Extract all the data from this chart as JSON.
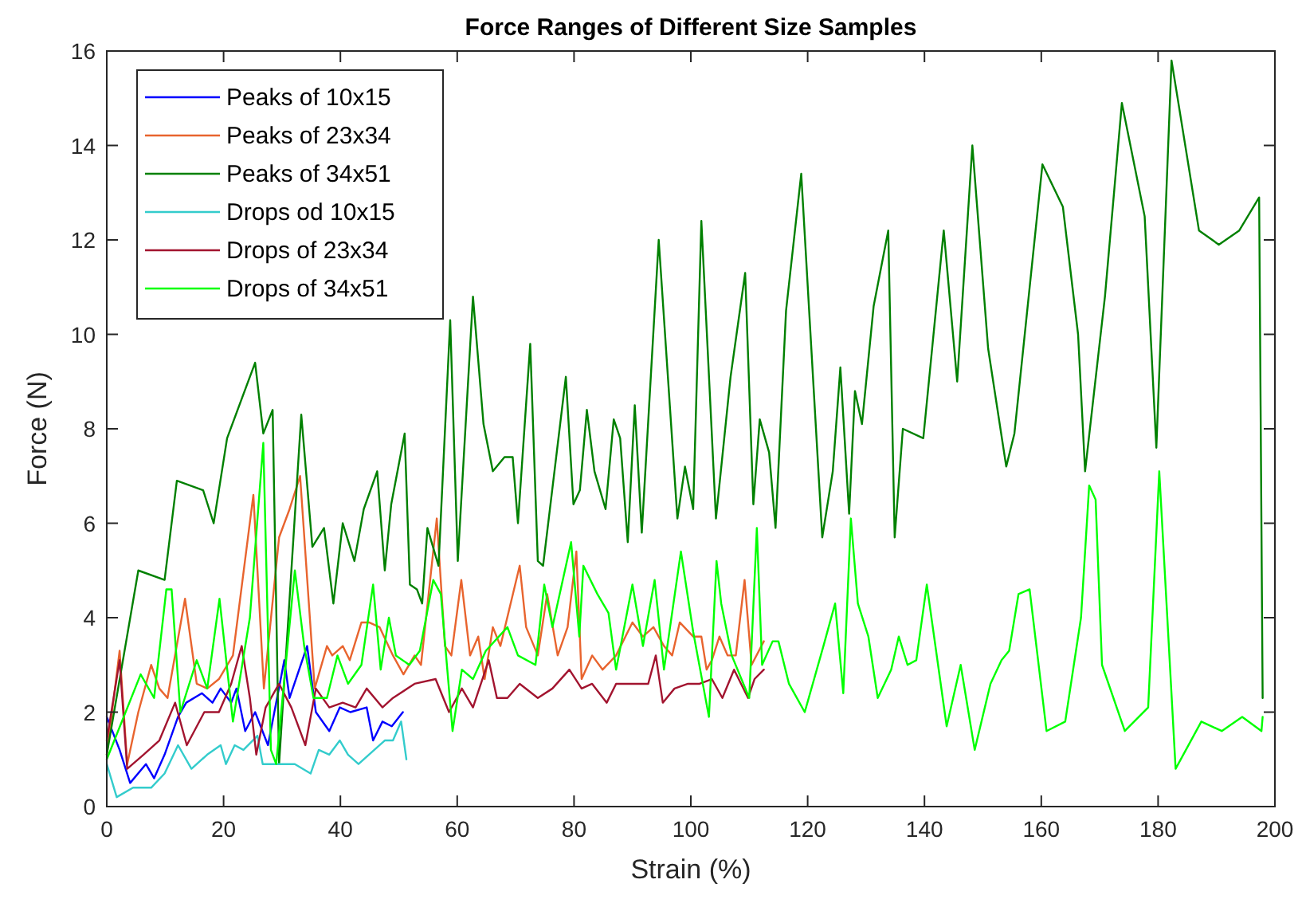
{
  "chart_data": {
    "type": "line",
    "title": "Force Ranges of Different Size Samples",
    "xlabel": "Strain (%)",
    "ylabel": "Force (N)",
    "xlim": [
      0,
      200
    ],
    "xticks": [
      0,
      20,
      40,
      60,
      80,
      100,
      120,
      140,
      160,
      180,
      200
    ],
    "ylim": [
      0,
      16
    ],
    "yticks": [
      0,
      2,
      4,
      6,
      8,
      10,
      12,
      14,
      16
    ],
    "grid": false,
    "legend": "top left",
    "marker": "none",
    "line_style": "solid",
    "series": [
      {
        "name": "Peaks of 10x15",
        "color": "#0000ff",
        "x": [
          0,
          2.2,
          4,
          6.7,
          8.1,
          9.9,
          12.2,
          13.6,
          16.3,
          18.1,
          19.5,
          21.3,
          22.2,
          23.7,
          25.4,
          27.6,
          29,
          30.4,
          31.3,
          34.3,
          35.8,
          38.1,
          39.9,
          41.7,
          44.5,
          45.6,
          47.2,
          48.8,
          50.7
        ],
        "values": [
          1.9,
          1.2,
          0.5,
          0.9,
          0.6,
          1.1,
          1.9,
          2.2,
          2.4,
          2.2,
          2.5,
          2.2,
          2.5,
          1.6,
          2.0,
          1.3,
          2.2,
          3.1,
          2.3,
          3.4,
          2.0,
          1.6,
          2.1,
          2.0,
          2.1,
          1.4,
          1.8,
          1.7,
          2.0
        ]
      },
      {
        "name": "Peaks of 23x34",
        "color": "#e8642e",
        "x": [
          0,
          2.2,
          3.5,
          5.4,
          7.6,
          9,
          10.4,
          13.4,
          15.4,
          17.2,
          19.2,
          21.6,
          25.1,
          26.9,
          29.5,
          31.3,
          33.1,
          35.6,
          37.7,
          38.6,
          40.4,
          41.6,
          43.6,
          44.9,
          46.7,
          49,
          50.8,
          52.7,
          53.8,
          56.5,
          57.9,
          59,
          60.7,
          62.2,
          63.6,
          64.7,
          66.1,
          67.4,
          70.7,
          71.8,
          73.8,
          75.4,
          77.2,
          78.9,
          80.4,
          81.3,
          83.1,
          84.9,
          87.2,
          90,
          91.8,
          93.6,
          95.4,
          96.8,
          98.1,
          100.4,
          101.8,
          102.7,
          103.6,
          104.9,
          106.3,
          107.7,
          109.2,
          110.4,
          112.5
        ],
        "values": [
          1.1,
          3.3,
          0.9,
          2.0,
          3.0,
          2.5,
          2.3,
          4.4,
          2.6,
          2.5,
          2.7,
          3.2,
          6.6,
          2.5,
          5.7,
          6.3,
          7.0,
          2.5,
          3.4,
          3.2,
          3.4,
          3.1,
          3.9,
          3.9,
          3.8,
          3.2,
          2.8,
          3.2,
          3.0,
          6.1,
          3.4,
          3.2,
          4.8,
          3.2,
          3.6,
          2.7,
          3.8,
          3.4,
          5.1,
          3.8,
          3.2,
          4.5,
          3.2,
          3.8,
          5.4,
          2.7,
          3.2,
          2.9,
          3.2,
          3.9,
          3.6,
          3.8,
          3.4,
          3.2,
          3.9,
          3.6,
          3.6,
          2.9,
          3.1,
          3.6,
          3.2,
          3.2,
          4.8,
          3.0,
          3.5
        ]
      },
      {
        "name": "Peaks of 34x51",
        "color": "#008000",
        "x": [
          0,
          5.4,
          9.9,
          12,
          16.5,
          18.3,
          20.6,
          25.4,
          26.8,
          28.4,
          29.5,
          33.3,
          35.2,
          37.2,
          38.8,
          40.4,
          42.4,
          44,
          46.3,
          47.6,
          48.7,
          51,
          51.9,
          53.1,
          54,
          54.9,
          56.8,
          58.8,
          60.1,
          62.7,
          64.5,
          66.1,
          68.1,
          69.5,
          70.4,
          72.5,
          73.8,
          74.7,
          78.6,
          79.9,
          81,
          82.2,
          83.5,
          85.4,
          86.8,
          87.9,
          89.2,
          90.4,
          91.6,
          94.5,
          97.7,
          99,
          100.4,
          101.8,
          104.3,
          106.8,
          109.3,
          110.7,
          111.8,
          113.4,
          114.5,
          116.3,
          118.9,
          122.5,
          124.3,
          125.6,
          127.1,
          128.1,
          129.3,
          131.3,
          133.8,
          134.9,
          136.3,
          139.8,
          143.3,
          145.6,
          148.2,
          150.9,
          154,
          155.4,
          160.2,
          163.7,
          166.3,
          167.5,
          170.9,
          173.8,
          177.7,
          179.7,
          182.3,
          187,
          190.4,
          193.9,
          197.3,
          197.9
        ],
        "values": [
          1.1,
          5.0,
          4.8,
          6.9,
          6.7,
          6.0,
          7.8,
          9.4,
          7.9,
          8.4,
          0.9,
          8.3,
          5.5,
          5.9,
          4.3,
          6.0,
          5.2,
          6.3,
          7.1,
          5.0,
          6.4,
          7.9,
          4.7,
          4.6,
          4.3,
          5.9,
          5.1,
          10.3,
          5.2,
          10.8,
          8.1,
          7.1,
          7.4,
          7.4,
          6.0,
          9.8,
          5.2,
          5.1,
          9.1,
          6.4,
          6.7,
          8.4,
          7.1,
          6.3,
          8.2,
          7.8,
          5.6,
          8.5,
          5.8,
          12.0,
          6.1,
          7.2,
          6.3,
          12.4,
          6.1,
          9.1,
          11.3,
          6.4,
          8.2,
          7.5,
          5.9,
          10.5,
          13.4,
          5.7,
          7.1,
          9.3,
          6.2,
          8.8,
          8.1,
          10.6,
          12.2,
          5.7,
          8.0,
          7.8,
          12.2,
          9.0,
          14.0,
          9.7,
          7.2,
          7.9,
          13.6,
          12.7,
          10.0,
          7.1,
          10.8,
          14.9,
          12.5,
          7.6,
          15.8,
          12.2,
          11.9,
          12.2,
          12.9,
          2.3
        ]
      },
      {
        "name": "Drops od 10x15",
        "color": "#33cccc",
        "x": [
          0,
          1.7,
          4.5,
          7.6,
          9.9,
          12.2,
          14.5,
          17.2,
          19.5,
          20.4,
          21.9,
          23.4,
          25.8,
          26.7,
          29.5,
          32.2,
          34.9,
          36.3,
          38.1,
          39.9,
          41.3,
          43.1,
          45.8,
          47.6,
          49,
          50.4,
          51.3
        ],
        "values": [
          0.9,
          0.2,
          0.4,
          0.4,
          0.7,
          1.3,
          0.8,
          1.1,
          1.3,
          0.9,
          1.3,
          1.2,
          1.5,
          0.9,
          0.9,
          0.9,
          0.7,
          1.2,
          1.1,
          1.4,
          1.1,
          0.9,
          1.2,
          1.4,
          1.4,
          1.8,
          1.0
        ]
      },
      {
        "name": "Drops of 23x34",
        "color": "#a2142f",
        "x": [
          0,
          2.2,
          3.5,
          6.3,
          9,
          11.7,
          13.7,
          16.7,
          19.2,
          21.3,
          23.1,
          24.5,
          25.6,
          27.2,
          29.5,
          31.6,
          34,
          35.8,
          38.1,
          40.4,
          42.6,
          44.5,
          47.2,
          49,
          52.7,
          56.3,
          58.6,
          60.8,
          62.7,
          65.4,
          66.8,
          68.6,
          70.7,
          73.8,
          76.3,
          79.2,
          81.3,
          83.1,
          85.6,
          87.2,
          92.7,
          94,
          95.2,
          97.2,
          99.5,
          101.5,
          103.6,
          105.4,
          107.4,
          109.8,
          110.9,
          112.5
        ],
        "values": [
          1.4,
          3.1,
          0.8,
          1.1,
          1.4,
          2.2,
          1.3,
          2.0,
          2.0,
          2.6,
          3.4,
          2.3,
          1.1,
          2.1,
          2.6,
          2.1,
          1.3,
          2.5,
          2.1,
          2.2,
          2.1,
          2.5,
          2.1,
          2.3,
          2.6,
          2.7,
          2.0,
          2.5,
          2.1,
          3.1,
          2.3,
          2.3,
          2.6,
          2.3,
          2.5,
          2.9,
          2.5,
          2.6,
          2.2,
          2.6,
          2.6,
          3.2,
          2.2,
          2.5,
          2.6,
          2.6,
          2.7,
          2.3,
          2.9,
          2.3,
          2.7,
          2.9
        ]
      },
      {
        "name": "Drops of 34x51",
        "color": "#00ff00",
        "x": [
          0,
          5.8,
          8.1,
          10.2,
          11.1,
          12.6,
          15.4,
          17.2,
          19.3,
          21.6,
          24.5,
          26.8,
          28.1,
          29,
          32.2,
          33.8,
          35.4,
          37.7,
          39.5,
          41.3,
          43.6,
          45.6,
          46.9,
          48.3,
          49.5,
          51.8,
          53.6,
          55.9,
          57.2,
          59.2,
          60.8,
          62.7,
          64.9,
          68.6,
          70.4,
          73.4,
          74.9,
          76.3,
          79.5,
          80.9,
          81.6,
          84,
          85.9,
          87.2,
          90,
          91.8,
          93.8,
          95.4,
          98.3,
          100.4,
          102.2,
          103.1,
          104.4,
          105.2,
          107,
          110,
          111.3,
          112.2,
          114,
          115,
          116.8,
          119.5,
          122.7,
          124.7,
          126.1,
          127.4,
          128.6,
          130.4,
          132,
          134.3,
          135.6,
          137.1,
          138.6,
          140.4,
          143.8,
          146.2,
          148.6,
          151.3,
          153.2,
          154.5,
          156.1,
          158,
          160.9,
          164.1,
          166.8,
          168.2,
          169.3,
          170.4,
          174.3,
          178.3,
          180.2,
          183,
          187.4,
          190.9,
          194.4,
          197.7,
          197.9
        ],
        "values": [
          1.0,
          2.8,
          2.3,
          4.6,
          4.6,
          2.0,
          3.1,
          2.5,
          4.4,
          1.8,
          4.0,
          7.7,
          1.2,
          0.9,
          5.0,
          3.4,
          2.3,
          2.3,
          3.2,
          2.6,
          3.0,
          4.7,
          2.9,
          4.0,
          3.2,
          3.0,
          3.3,
          4.8,
          4.5,
          1.6,
          2.9,
          2.7,
          3.3,
          3.8,
          3.2,
          3.0,
          4.7,
          3.8,
          5.6,
          3.6,
          5.1,
          4.5,
          4.1,
          2.9,
          4.7,
          3.4,
          4.8,
          2.9,
          5.4,
          3.7,
          2.5,
          1.9,
          5.2,
          4.3,
          3.2,
          2.3,
          5.9,
          3.0,
          3.5,
          3.5,
          2.6,
          2.0,
          3.4,
          4.3,
          2.4,
          6.1,
          4.3,
          3.6,
          2.3,
          2.9,
          3.6,
          3.0,
          3.1,
          4.7,
          1.7,
          3.0,
          1.2,
          2.6,
          3.1,
          3.3,
          4.5,
          4.6,
          1.6,
          1.8,
          4.0,
          6.8,
          6.5,
          3.0,
          1.6,
          2.1,
          7.1,
          0.8,
          1.8,
          1.6,
          1.9,
          1.6,
          1.9
        ]
      }
    ]
  }
}
